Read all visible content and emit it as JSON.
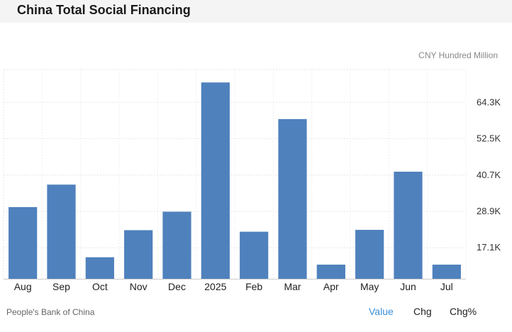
{
  "header": {
    "title": "China Total Social Financing"
  },
  "unit_label": "CNY Hundred Million",
  "source": "People's Bank of China",
  "tabs": [
    {
      "label": "Value",
      "active": true
    },
    {
      "label": "Chg",
      "active": false
    },
    {
      "label": "Chg%",
      "active": false
    }
  ],
  "colors": {
    "bar": "#4f81bd",
    "active_tab": "#3a8ed8"
  },
  "chart_data": {
    "type": "bar",
    "title": "China Total Social Financing",
    "ylabel": "CNY Hundred Million",
    "categories": [
      "Aug",
      "Sep",
      "Oct",
      "Nov",
      "Dec",
      "2025",
      "Feb",
      "Mar",
      "Apr",
      "May",
      "Jun",
      "Jul"
    ],
    "values": [
      30300,
      37600,
      14000,
      22800,
      28800,
      70800,
      22300,
      58900,
      11600,
      22900,
      41800,
      11600
    ],
    "yticks": [
      {
        "value": 17100,
        "label": "17.1K"
      },
      {
        "value": 28900,
        "label": "28.9K"
      },
      {
        "value": 40700,
        "label": "40.7K"
      },
      {
        "value": 52500,
        "label": "52.5K"
      },
      {
        "value": 64300,
        "label": "64.3K"
      }
    ],
    "ylim": [
      7000,
      75000
    ],
    "grid": true,
    "y_axis_position": "right"
  }
}
